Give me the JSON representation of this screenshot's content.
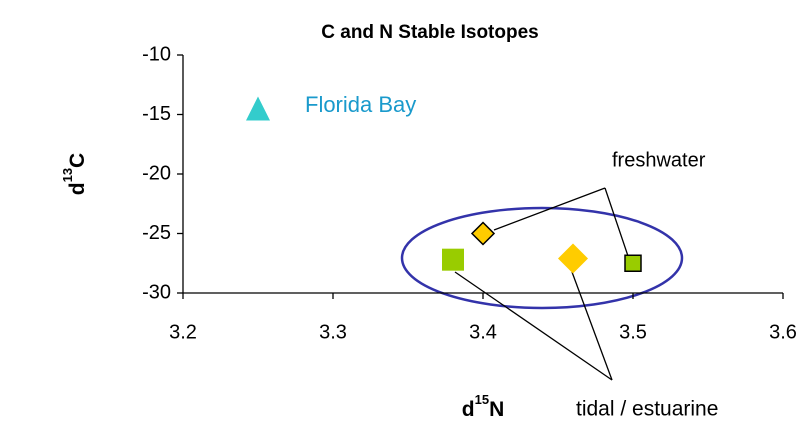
{
  "chart_data": {
    "type": "scatter",
    "title": "C and N Stable Isotopes",
    "xlabel": [
      "d",
      "15",
      "N"
    ],
    "ylabel": [
      "d",
      "13",
      "C"
    ],
    "xlim": [
      3.2,
      3.6
    ],
    "xticks": [
      3.2,
      3.3,
      3.4,
      3.5,
      3.6
    ],
    "ylim": [
      -30,
      -10
    ],
    "yticks": [
      -10,
      -15,
      -20,
      -25,
      -30
    ],
    "grid": false,
    "series": [
      {
        "color": "#33cccc",
        "marker": "triangle",
        "edgecolor": null,
        "x": [
          3.25
        ],
        "values": [
          -14.5
        ]
      },
      {
        "color": "#ffcc00",
        "marker": "diamond",
        "edgecolor": "#000000",
        "x": [
          3.4
        ],
        "values": [
          -25
        ]
      },
      {
        "color": "#99cc00",
        "marker": "square",
        "edgecolor": "#000000",
        "x": [
          3.5
        ],
        "values": [
          -27.5
        ]
      },
      {
        "color": "#99cc00",
        "marker": "square",
        "edgecolor": null,
        "x": [
          3.38
        ],
        "values": [
          -27.2
        ]
      },
      {
        "color": "#ffcc00",
        "marker": "diamond",
        "edgecolor": null,
        "x": [
          3.46
        ],
        "values": [
          -27.1
        ]
      }
    ],
    "annotations": [
      {
        "text": "Florida Bay",
        "color": "#1a9acc"
      },
      {
        "text": "freshwater",
        "color": "#000000"
      },
      {
        "text": "tidal / estuarine",
        "color": "#000000"
      }
    ]
  }
}
